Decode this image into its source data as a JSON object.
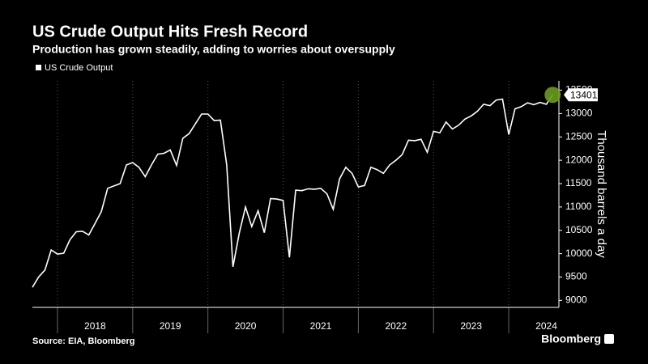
{
  "chart_data": {
    "type": "line",
    "title": "US Crude Output Hits Fresh Record",
    "subtitle": "Production has grown steadily, adding to worries about oversupply",
    "y_label": "Thousand barrels a day",
    "source": "Source: EIA, Bloomberg",
    "brand": "Bloomberg",
    "x": [
      "2017-09",
      "2017-10",
      "2017-11",
      "2017-12",
      "2018-01",
      "2018-02",
      "2018-03",
      "2018-04",
      "2018-05",
      "2018-06",
      "2018-07",
      "2018-08",
      "2018-09",
      "2018-10",
      "2018-11",
      "2018-12",
      "2019-01",
      "2019-02",
      "2019-03",
      "2019-04",
      "2019-05",
      "2019-06",
      "2019-07",
      "2019-08",
      "2019-09",
      "2019-10",
      "2019-11",
      "2019-12",
      "2020-01",
      "2020-02",
      "2020-03",
      "2020-04",
      "2020-05",
      "2020-06",
      "2020-07",
      "2020-08",
      "2020-09",
      "2020-10",
      "2020-11",
      "2020-12",
      "2021-01",
      "2021-02",
      "2021-03",
      "2021-04",
      "2021-05",
      "2021-06",
      "2021-07",
      "2021-08",
      "2021-09",
      "2021-10",
      "2021-11",
      "2021-12",
      "2022-01",
      "2022-02",
      "2022-03",
      "2022-04",
      "2022-05",
      "2022-06",
      "2022-07",
      "2022-08",
      "2022-09",
      "2022-10",
      "2022-11",
      "2022-12",
      "2023-01",
      "2023-02",
      "2023-03",
      "2023-04",
      "2023-05",
      "2023-06",
      "2023-07",
      "2023-08",
      "2023-09",
      "2023-10",
      "2023-11",
      "2023-12",
      "2024-01",
      "2024-02",
      "2024-03",
      "2024-04",
      "2024-05",
      "2024-06",
      "2024-07",
      "2024-08"
    ],
    "series": [
      {
        "name": "US Crude Output",
        "color": "#ffffff",
        "values": [
          9280,
          9500,
          9650,
          10080,
          9990,
          10010,
          10300,
          10470,
          10480,
          10400,
          10650,
          10900,
          11400,
          11450,
          11500,
          11900,
          11950,
          11850,
          11650,
          11900,
          12130,
          12150,
          12220,
          11890,
          12470,
          12570,
          12780,
          12990,
          12990,
          12850,
          12860,
          11900,
          9720,
          10440,
          11000,
          10580,
          10920,
          10450,
          11180,
          11170,
          11140,
          9920,
          11360,
          11350,
          11390,
          11380,
          11400,
          11280,
          10950,
          11600,
          11850,
          11720,
          11430,
          11460,
          11850,
          11800,
          11720,
          11900,
          12000,
          12120,
          12430,
          12420,
          12450,
          12170,
          12620,
          12590,
          12820,
          12670,
          12750,
          12880,
          12950,
          13050,
          13200,
          13170,
          13290,
          13310,
          12550,
          13100,
          13150,
          13230,
          13190,
          13240,
          13200,
          13401
        ]
      }
    ],
    "highlight_color": "#6b9a1f",
    "xlim": [
      "2017-09",
      "2024-09"
    ],
    "xticks": [
      "2018",
      "2019",
      "2020",
      "2021",
      "2022",
      "2023",
      "2024"
    ],
    "ylim": [
      8850,
      13700
    ],
    "yticks": [
      9000,
      9500,
      10000,
      10500,
      11000,
      11500,
      12000,
      12500,
      13000,
      13500
    ],
    "grid": true
  }
}
